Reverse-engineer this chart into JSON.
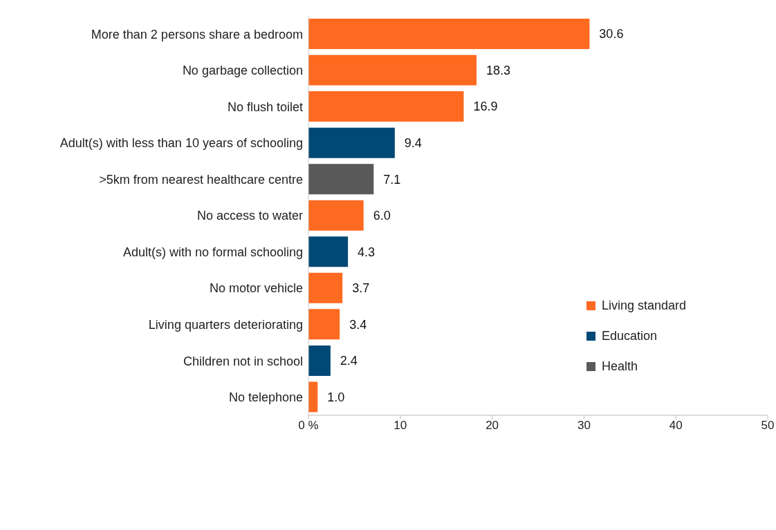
{
  "chart_data": {
    "type": "bar",
    "orientation": "horizontal",
    "stacked": true,
    "categories": [
      "More than 2 persons share a bedroom",
      "No garbage collection",
      "No flush toilet",
      "Adult(s) with less than 10 years of schooling",
      ">5km from nearest healthcare centre",
      "No access to water",
      "Adult(s) with no formal schooling",
      "No motor vehicle",
      "Living quarters deteriorating",
      "Children not in school",
      "No telephone"
    ],
    "series": [
      {
        "name": "Living standard",
        "color": "#ff6a21",
        "values": [
          30.6,
          18.3,
          16.9,
          null,
          null,
          6.0,
          null,
          3.7,
          3.4,
          null,
          1.0
        ],
        "value_labels": [
          "30.6",
          "18.3",
          "16.9",
          null,
          null,
          "6.0",
          null,
          "3.7",
          "3.4",
          null,
          "1.0"
        ]
      },
      {
        "name": "Education",
        "color": "#004876",
        "values": [
          null,
          null,
          null,
          9.4,
          null,
          null,
          4.3,
          null,
          null,
          2.4,
          null
        ],
        "value_labels": [
          null,
          null,
          null,
          "9.4",
          null,
          null,
          "4.3",
          null,
          null,
          "2.4",
          null
        ]
      },
      {
        "name": "Health",
        "color": "#595959",
        "values": [
          null,
          null,
          null,
          null,
          7.1,
          null,
          null,
          null,
          null,
          null,
          null
        ],
        "value_labels": [
          null,
          null,
          null,
          null,
          "7.1",
          null,
          null,
          null,
          null,
          null,
          null
        ]
      }
    ],
    "xlim": [
      0,
      50
    ],
    "xticks": [
      {
        "value": 0,
        "label": "0 %"
      },
      10,
      20,
      30,
      40,
      50
    ],
    "grid": false,
    "legend": "right"
  }
}
